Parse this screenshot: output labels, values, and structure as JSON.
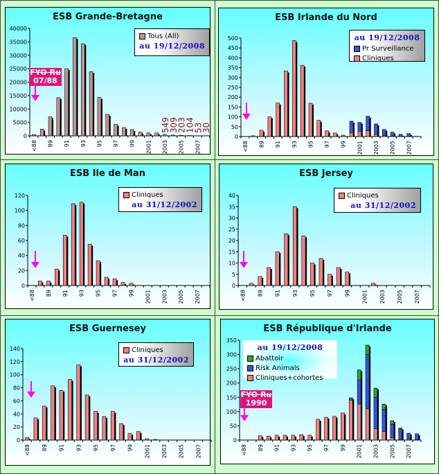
{
  "chart_data": [
    {
      "type": "bar",
      "title": "ESB Grande-Bretagne",
      "categories": [
        "<88",
        "88",
        "89",
        "90",
        "91",
        "92",
        "93",
        "94",
        "95",
        "96",
        "97",
        "98",
        "99",
        "2000",
        "2001",
        "2002",
        "2003",
        "2004",
        "2005",
        "2006",
        "2007",
        "2008"
      ],
      "tick_labels": [
        "<88",
        "89",
        "91",
        "93",
        "95",
        "97",
        "99",
        "2001",
        "2003",
        "2005",
        "2007"
      ],
      "series": [
        {
          "name": "Tous (All)",
          "color": "#c09494",
          "values": [
            450,
            2500,
            7100,
            14200,
            25000,
            36600,
            34300,
            23900,
            14300,
            8000,
            4300,
            3100,
            2300,
            1400,
            1100,
            1100,
            549,
            309,
            203,
            104,
            53,
            30
          ]
        }
      ],
      "ylim": [
        0,
        40000
      ],
      "ystep": 5000,
      "legend_date": "au 19/12/2008",
      "data_labels": {
        "categories": [
          "2003",
          "2004",
          "2005",
          "2006",
          "2007",
          "2008"
        ],
        "values": [
          "549",
          "309",
          "203",
          "104",
          "53",
          "30"
        ]
      },
      "annotation": {
        "line1": "FYO Ru",
        "line2": "07/88"
      },
      "legend": "top-right"
    },
    {
      "type": "bar",
      "stacked": true,
      "title": "ESB Irlande du Nord",
      "categories": [
        "<88",
        "88",
        "89",
        "90",
        "91",
        "92",
        "93",
        "94",
        "95",
        "96",
        "97",
        "98",
        "99",
        "2000",
        "2001",
        "2002",
        "2003",
        "2004",
        "2005",
        "2006",
        "2007",
        "2008"
      ],
      "tick_labels": [
        "<88",
        "89",
        "91",
        "93",
        "95",
        "97",
        "99",
        "2001",
        "2003",
        "2005",
        "2007"
      ],
      "series": [
        {
          "name": "Cliniques",
          "color": "#f08080",
          "values": [
            0,
            4,
            32,
            100,
            170,
            333,
            487,
            362,
            169,
            82,
            29,
            18,
            7,
            20,
            27,
            30,
            10,
            5,
            0,
            0,
            0,
            0
          ]
        },
        {
          "name": "Pr Surveillance",
          "color": "#3355dd",
          "values": [
            0,
            0,
            0,
            0,
            0,
            0,
            0,
            0,
            0,
            0,
            0,
            0,
            0,
            58,
            45,
            73,
            54,
            31,
            22,
            11,
            15,
            0
          ]
        }
      ],
      "ylim": [
        0,
        500
      ],
      "ystep": 50,
      "legend_date": "au 19/12/2008",
      "legend": "top-right"
    },
    {
      "type": "bar",
      "title": "ESB Ile de Man",
      "categories": [
        "<88",
        "88",
        "89",
        "90",
        "91",
        "92",
        "93",
        "94",
        "95",
        "96",
        "97",
        "98",
        "99",
        "2000",
        "2001",
        "2002",
        "2003",
        "2004",
        "2005",
        "2006",
        "2007",
        "2008"
      ],
      "tick_labels": [
        "<88",
        "89",
        "91",
        "93",
        "95",
        "97",
        "99",
        "2001",
        "2003",
        "2005",
        "2007"
      ],
      "series": [
        {
          "name": "Cliniques",
          "color": "#f08080",
          "values": [
            0,
            6,
            6,
            22,
            67,
            109,
            111,
            55,
            33,
            11,
            9,
            4,
            3,
            0,
            0,
            0,
            0,
            0,
            0,
            0,
            0,
            0
          ]
        }
      ],
      "ylim": [
        0,
        120
      ],
      "ystep": 20,
      "legend_date": "au 31/12/2002",
      "legend": "top-right"
    },
    {
      "type": "bar",
      "title": "ESB Jersey",
      "categories": [
        "<88",
        "88",
        "89",
        "90",
        "91",
        "92",
        "93",
        "94",
        "95",
        "96",
        "97",
        "98",
        "99",
        "2000",
        "2001",
        "2002",
        "2003",
        "2004",
        "2005",
        "2006",
        "2007",
        "2008"
      ],
      "tick_labels": [
        "<88",
        "89",
        "91",
        "93",
        "95",
        "97",
        "99",
        "2001",
        "2003",
        "2005",
        "2007"
      ],
      "series": [
        {
          "name": "Cliniques",
          "color": "#f08080",
          "values": [
            0,
            1,
            4,
            8,
            15,
            23,
            35,
            22,
            10,
            12,
            5,
            8,
            6,
            0,
            0,
            1,
            0,
            0,
            0,
            0,
            0,
            0
          ]
        }
      ],
      "ylim": [
        0,
        40
      ],
      "ystep": 5,
      "legend_date": "au 31/12/2002",
      "legend": "top-right"
    },
    {
      "type": "bar",
      "title": "ESB Guernesey",
      "categories": [
        "<88",
        "88",
        "89",
        "90",
        "91",
        "92",
        "93",
        "94",
        "95",
        "96",
        "97",
        "98",
        "99",
        "2000",
        "2001",
        "2002",
        "2003",
        "2004",
        "2005",
        "2006",
        "2007",
        "2008"
      ],
      "tick_labels": [
        "<88",
        "89",
        "91",
        "93",
        "95",
        "97",
        "99",
        "2001",
        "2003",
        "2005",
        "2007"
      ],
      "series": [
        {
          "name": "Cliniques",
          "color": "#f08080",
          "values": [
            4,
            34,
            52,
            83,
            76,
            93,
            115,
            69,
            44,
            36,
            44,
            25,
            10,
            13,
            2,
            1,
            0,
            0,
            0,
            0,
            0,
            0
          ]
        }
      ],
      "ylim": [
        0,
        140
      ],
      "ystep": 20,
      "legend_date": "au 31/12/2002",
      "legend": "top-right"
    },
    {
      "type": "bar",
      "stacked": true,
      "title": "ESB République d'Irlande",
      "categories": [
        "<88",
        "88",
        "89",
        "90",
        "91",
        "92",
        "93",
        "94",
        "95",
        "96",
        "97",
        "98",
        "99",
        "2000",
        "2001",
        "2002",
        "2003",
        "2004",
        "2005",
        "2006",
        "2007",
        "2008"
      ],
      "tick_labels": [
        "<88",
        "89",
        "91",
        "93",
        "95",
        "97",
        "99",
        "2001",
        "2003",
        "2005",
        "2007"
      ],
      "series": [
        {
          "name": "Cliniques+cohortes",
          "color": "#f08080",
          "values": [
            0,
            0,
            15,
            14,
            17,
            17,
            17,
            19,
            17,
            73,
            80,
            83,
            95,
            140,
            126,
            110,
            40,
            30,
            9,
            2,
            4,
            1
          ]
        },
        {
          "name": "Risk Animals",
          "color": "#3355dd",
          "values": [
            0,
            0,
            0,
            0,
            0,
            0,
            0,
            0,
            0,
            0,
            0,
            0,
            0,
            8,
            85,
            190,
            110,
            77,
            46,
            36,
            20,
            21
          ]
        },
        {
          "name": "Abattoir",
          "color": "#33a033",
          "values": [
            0,
            0,
            0,
            0,
            0,
            0,
            0,
            0,
            0,
            0,
            0,
            0,
            0,
            0,
            35,
            33,
            32,
            19,
            13,
            4,
            0,
            0
          ]
        }
      ],
      "ylim": [
        0,
        350
      ],
      "ystep": 50,
      "legend_date": "au 19/12/2008",
      "annotation": {
        "line1": "FYO Ru",
        "line2": "1990"
      },
      "legend": "top-left"
    }
  ],
  "colors": {
    "background": "#ccffcc",
    "arrow": "#ff00ff",
    "annotation": "#e0147a",
    "legend_date": "#1010c0",
    "data_label": "#8b1010"
  }
}
